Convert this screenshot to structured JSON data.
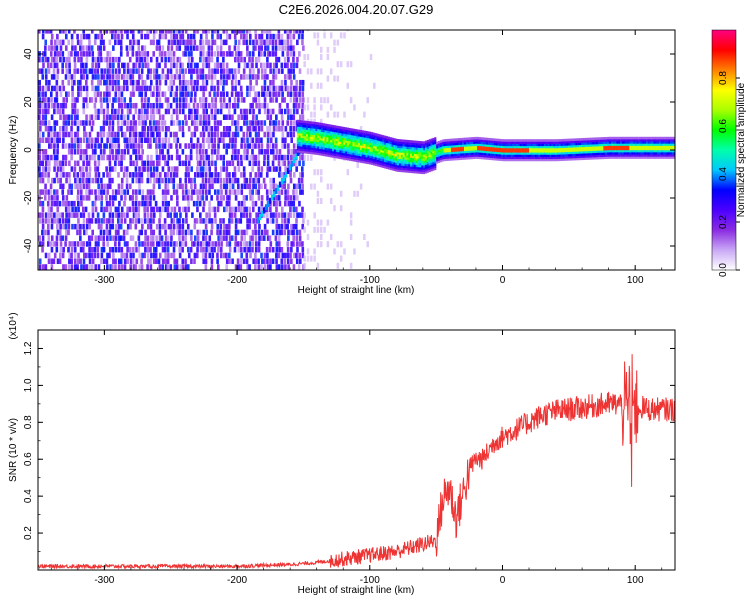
{
  "title": "C2E6.2026.004.20.07.G29",
  "chart_data": [
    {
      "type": "heatmap",
      "name": "spectrogram",
      "xlabel": "Height of straight line (km)",
      "ylabel": "Frequency (Hz)",
      "xlim": [
        -350,
        130
      ],
      "ylim": [
        -50,
        50
      ],
      "xticks": [
        -300,
        -200,
        -100,
        0,
        100
      ],
      "yticks": [
        -40,
        -20,
        0,
        20,
        40
      ],
      "colorbar": {
        "label": "Normalized spectral amplitude",
        "range": [
          0.0,
          1.0
        ],
        "ticks": [
          0.0,
          0.2,
          0.4,
          0.6,
          0.8
        ],
        "tick_labels": [
          "0.0",
          "0.2",
          "0.4",
          "0.6",
          "0.8"
        ],
        "colormap": [
          "#ffffff",
          "#c9a8f5",
          "#8a2be2",
          "#4b00ff",
          "#0000ff",
          "#00c8ff",
          "#00ffaa",
          "#00ff00",
          "#aaff00",
          "#ffff00",
          "#ff8000",
          "#ff0000",
          "#ff0080"
        ]
      },
      "regions": [
        {
          "description": "broadband noise",
          "x_range": [
            -350,
            -150
          ],
          "y_range": [
            -50,
            50
          ]
        },
        {
          "description": "signal track",
          "points": [
            [
              -155,
              6
            ],
            [
              -140,
              5
            ],
            [
              -120,
              3
            ],
            [
              -100,
              1
            ],
            [
              -80,
              -2
            ],
            [
              -60,
              -3
            ],
            [
              -45,
              0
            ],
            [
              -20,
              1
            ],
            [
              0,
              0
            ],
            [
              40,
              0
            ],
            [
              80,
              1
            ],
            [
              130,
              1
            ]
          ]
        },
        {
          "description": "diagonal streak",
          "points": [
            [
              -185,
              -30
            ],
            [
              -165,
              -12
            ],
            [
              -155,
              -2
            ]
          ]
        }
      ]
    },
    {
      "type": "line",
      "name": "snr",
      "xlabel": "Height of straight line (km)",
      "ylabel": "SNR (10 * v/v)",
      "yscale_label": "(x10⁴)",
      "xlim": [
        -350,
        130
      ],
      "ylim": [
        0,
        1.3
      ],
      "xticks": [
        -300,
        -200,
        -100,
        0,
        100
      ],
      "yticks": [
        0.2,
        0.4,
        0.6,
        0.8,
        1.0,
        1.2
      ],
      "ytick_labels": [
        "0.2",
        "0.4",
        "0.6",
        "0.8",
        "1.0",
        "1.2"
      ],
      "color": "#ee3333",
      "x": [
        -350,
        -300,
        -250,
        -200,
        -160,
        -140,
        -120,
        -100,
        -80,
        -70,
        -60,
        -50,
        -45,
        -40,
        -35,
        -30,
        -25,
        -20,
        -15,
        -10,
        -5,
        0,
        10,
        20,
        30,
        40,
        50,
        60,
        70,
        80,
        90,
        95,
        98,
        100,
        105,
        110,
        120,
        130
      ],
      "y": [
        0.02,
        0.02,
        0.02,
        0.02,
        0.03,
        0.04,
        0.06,
        0.08,
        0.1,
        0.12,
        0.14,
        0.16,
        0.38,
        0.45,
        0.28,
        0.4,
        0.55,
        0.6,
        0.6,
        0.65,
        0.7,
        0.72,
        0.76,
        0.8,
        0.84,
        0.86,
        0.87,
        0.88,
        0.89,
        0.9,
        0.9,
        0.85,
        0.95,
        0.88,
        0.88,
        0.87,
        0.87,
        0.87
      ]
    }
  ]
}
